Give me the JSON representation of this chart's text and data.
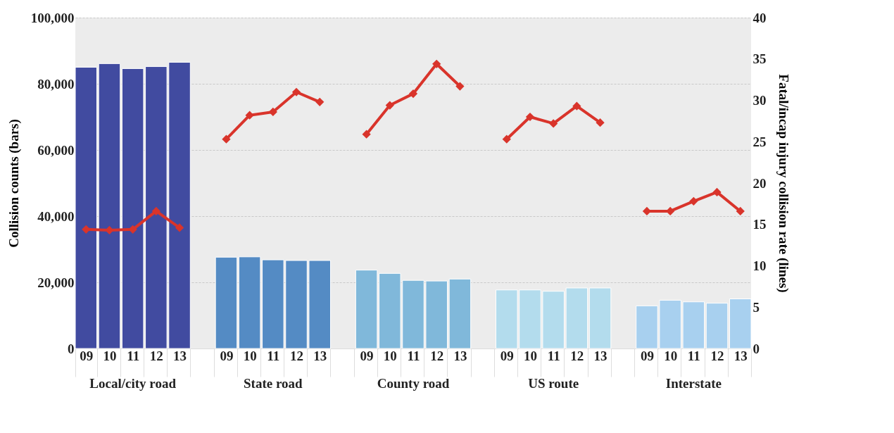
{
  "chart_data": {
    "type": "bar",
    "ylabel": "Collision counts (bars)",
    "y2label": "Fatal/incap injury collision rate (lines)",
    "categories": [
      "09",
      "10",
      "11",
      "12",
      "13",
      null,
      "09",
      "10",
      "11",
      "12",
      "13",
      null,
      "09",
      "10",
      "11",
      "12",
      "13",
      null,
      "09",
      "10",
      "11",
      "12",
      "13",
      null,
      "09",
      "10",
      "11",
      "12",
      "13"
    ],
    "annotations": [
      "Local/city road",
      "State road",
      "County road",
      "US route",
      "Interstate"
    ],
    "series": [
      {
        "colors": [
          "#414ba0",
          "#414ba0",
          "#414ba0",
          "#414ba0",
          "#414ba0",
          null,
          "#548bc4",
          "#548bc4",
          "#548bc4",
          "#548bc4",
          "#548bc4",
          null,
          "#80b8da",
          "#80b8da",
          "#80b8da",
          "#80b8da",
          "#80b8da",
          null,
          "#b3dced",
          "#b3dced",
          "#b3dced",
          "#b3dced",
          "#b3dced",
          null,
          "#a8d0ef",
          "#a8d0ef",
          "#a8d0ef",
          "#a8d0ef",
          "#a8d0ef"
        ],
        "values": [
          85000,
          86100,
          84600,
          85200,
          86500,
          null,
          27600,
          27700,
          26800,
          26600,
          26600,
          null,
          23700,
          22700,
          20600,
          20400,
          21000,
          null,
          17700,
          17700,
          17300,
          18300,
          18300,
          null,
          12900,
          14600,
          14100,
          13700,
          15000
        ]
      },
      {
        "type": "line",
        "axis": "y2",
        "color": "#d9342b",
        "values": [
          14.4,
          14.3,
          14.4,
          16.6,
          14.6,
          null,
          null,
          null,
          null,
          null,
          null,
          null,
          null,
          null,
          null,
          null,
          null,
          null,
          null,
          null,
          null,
          null,
          null,
          null,
          null,
          null,
          null,
          null,
          null
        ]
      },
      {
        "type": "line",
        "axis": "y2",
        "color": "#d9342b",
        "values": [
          null,
          null,
          null,
          null,
          null,
          null,
          25.3,
          28.2,
          28.6,
          31.0,
          29.8,
          null,
          null,
          null,
          null,
          null,
          null,
          null,
          null,
          null,
          null,
          null,
          null,
          null,
          null,
          null,
          null,
          null,
          null
        ]
      },
      {
        "type": "line",
        "axis": "y2",
        "color": "#d9342b",
        "values": [
          null,
          null,
          null,
          null,
          null,
          null,
          null,
          null,
          null,
          null,
          null,
          null,
          25.9,
          29.4,
          30.8,
          34.4,
          31.7,
          null,
          null,
          null,
          null,
          null,
          null,
          null,
          null,
          null,
          null,
          null,
          null
        ]
      },
      {
        "type": "line",
        "axis": "y2",
        "color": "#d9342b",
        "values": [
          null,
          null,
          null,
          null,
          null,
          null,
          null,
          null,
          null,
          null,
          null,
          null,
          null,
          null,
          null,
          null,
          null,
          null,
          25.3,
          28.0,
          27.2,
          29.3,
          27.3,
          null,
          null,
          null,
          null,
          null,
          null
        ]
      },
      {
        "type": "line",
        "axis": "y2",
        "color": "#d9342b",
        "values": [
          null,
          null,
          null,
          null,
          null,
          null,
          null,
          null,
          null,
          null,
          null,
          null,
          null,
          null,
          null,
          null,
          null,
          null,
          null,
          null,
          null,
          null,
          null,
          null,
          16.6,
          16.6,
          17.8,
          18.9,
          16.6
        ]
      }
    ],
    "ylim": [
      0,
      100000
    ],
    "yticks": [
      0,
      {
        "value": 20000,
        "label": "20,000"
      },
      {
        "value": 40000,
        "label": "40,000"
      },
      {
        "value": 60000,
        "label": "60,000"
      },
      {
        "value": 80000,
        "label": "80,000"
      },
      {
        "value": 100000,
        "label": "100,000"
      }
    ],
    "y2lim": [
      0,
      40
    ],
    "y2ticks": [
      0,
      5,
      10,
      15,
      20,
      25,
      30,
      35,
      40
    ],
    "grid": "y",
    "legend": false,
    "marker": "diamond",
    "line_style": "solid"
  }
}
